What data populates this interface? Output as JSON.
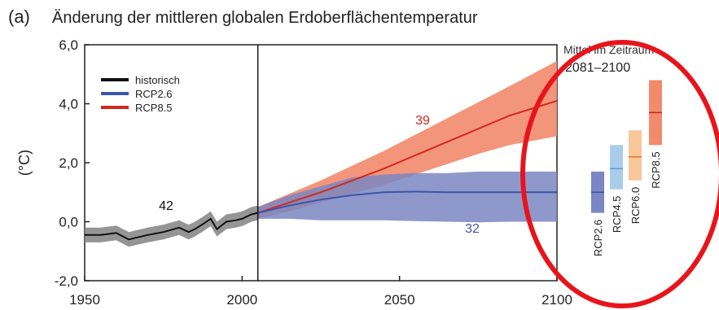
{
  "chart_data": {
    "type": "line",
    "panel_label": "(a)",
    "title": "Änderung der mittleren globalen Erdoberflächentemperatur",
    "ylabel": "(°C)",
    "xlim": [
      1950,
      2100
    ],
    "ylim": [
      -2.0,
      6.0
    ],
    "xticks": [
      1950,
      2000,
      2050,
      2100
    ],
    "yticks": [
      -2.0,
      0.0,
      2.0,
      4.0,
      6.0
    ],
    "ytick_labels": [
      "-2,0",
      "0,0",
      "2,0",
      "4,0",
      "6,0"
    ],
    "divider_year": 2005,
    "legend": [
      {
        "label": "historisch",
        "color": "#111111"
      },
      {
        "label": "RCP2.6",
        "color": "#3a56a8"
      },
      {
        "label": "RCP8.5",
        "color": "#d02a1e"
      }
    ],
    "series": [
      {
        "name": "historisch",
        "color": "#111111",
        "band_color": "#8a8a8a",
        "x": [
          1950,
          1955,
          1960,
          1964,
          1970,
          1975,
          1980,
          1983,
          1985,
          1988,
          1990,
          1992,
          1995,
          1998,
          2000,
          2003,
          2005
        ],
        "values": [
          -0.45,
          -0.45,
          -0.38,
          -0.6,
          -0.45,
          -0.35,
          -0.2,
          -0.35,
          -0.25,
          -0.05,
          0.1,
          -0.25,
          0.0,
          0.05,
          0.1,
          0.25,
          0.3
        ],
        "band": 0.25,
        "n_models": "42"
      },
      {
        "name": "RCP2.6",
        "color": "#3a56a8",
        "band_color": "#7b86c2",
        "x": [
          2005,
          2015,
          2025,
          2035,
          2045,
          2055,
          2065,
          2075,
          2085,
          2100
        ],
        "values": [
          0.3,
          0.55,
          0.75,
          0.9,
          1.0,
          1.02,
          1.0,
          1.0,
          1.0,
          1.0
        ],
        "lower": [
          0.1,
          0.1,
          0.05,
          0.05,
          0.05,
          0.02,
          0.0,
          -0.02,
          0.0,
          0.0
        ],
        "upper": [
          0.5,
          0.9,
          1.2,
          1.5,
          1.6,
          1.65,
          1.65,
          1.7,
          1.7,
          1.7
        ],
        "n_models": "32"
      },
      {
        "name": "RCP8.5",
        "color": "#d02a1e",
        "band_color": "#f28a6c",
        "x": [
          2005,
          2015,
          2025,
          2035,
          2045,
          2055,
          2065,
          2075,
          2085,
          2100
        ],
        "values": [
          0.3,
          0.65,
          1.0,
          1.4,
          1.8,
          2.25,
          2.7,
          3.15,
          3.6,
          4.1
        ],
        "lower": [
          0.1,
          0.35,
          0.65,
          0.95,
          1.25,
          1.6,
          1.95,
          2.3,
          2.6,
          2.9
        ],
        "upper": [
          0.5,
          0.95,
          1.4,
          1.9,
          2.4,
          2.95,
          3.5,
          4.05,
          4.6,
          5.45
        ],
        "n_models": "39"
      }
    ],
    "side_panel": {
      "title_line1": "Mittel im Zeitraum",
      "title_line2": "2081–2100",
      "bars": [
        {
          "label": "RCP2.6",
          "low": 0.3,
          "high": 1.7,
          "mean": 1.0,
          "color": "#7b86c2",
          "mean_color": "#3a56a8"
        },
        {
          "label": "RCP4.5",
          "low": 1.1,
          "high": 2.6,
          "mean": 1.8,
          "color": "#a9cde9",
          "mean_color": "#5b9bd5"
        },
        {
          "label": "RCP6.0",
          "low": 1.4,
          "high": 3.1,
          "mean": 2.2,
          "color": "#f8c79a",
          "mean_color": "#e07a2b"
        },
        {
          "label": "RCP8.5",
          "low": 2.6,
          "high": 4.8,
          "mean": 3.7,
          "color": "#f28a6c",
          "mean_color": "#c0281c"
        }
      ]
    }
  }
}
